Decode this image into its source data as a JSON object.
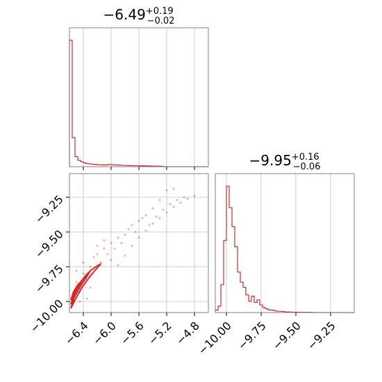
{
  "chart_data": [
    {
      "type": "histogram",
      "panel": "marginal-param-1",
      "title": "−6.49",
      "title_sup": "+0.19",
      "title_sub": "−0.02",
      "x_range": [
        -6.6,
        -4.6
      ],
      "x_ticks": [
        -6.4,
        -6.0,
        -5.6,
        -5.2,
        -4.8
      ],
      "grid": true,
      "color": "#d62728",
      "bin_edges_start": -6.6,
      "bin_width": 0.04,
      "counts": [
        100,
        23,
        8,
        5,
        4,
        3,
        2.5,
        2.2,
        2,
        1.8,
        1.5,
        1.5,
        1.3,
        1.5,
        1.8,
        1.6,
        1.3,
        1.3,
        1.2,
        1,
        1,
        0.9,
        0.8,
        0.8,
        0.8,
        0.7,
        0.6,
        0.7,
        0.6,
        0.5,
        0.5,
        0.4,
        0.4,
        0.3,
        0,
        0,
        0,
        0,
        0,
        0,
        0,
        0,
        0,
        0,
        0,
        0,
        0,
        0,
        0,
        0
      ]
    },
    {
      "type": "histogram",
      "panel": "marginal-param-2",
      "title": "−9.95",
      "title_sup": "+0.16",
      "title_sub": "−0.06",
      "x_range": [
        -10.08,
        -9.08
      ],
      "x_ticks": [
        -10.0,
        -9.75,
        -9.5,
        -9.25
      ],
      "x_tick_labels": [
        "−10.00",
        "−9.75",
        "−9.50",
        "−9.25"
      ],
      "grid": true,
      "color": "#d62728",
      "bin_edges_start": -10.08,
      "bin_width": 0.02,
      "counts": [
        2,
        5,
        22,
        57,
        100,
        83,
        68,
        52,
        32,
        24,
        20,
        14,
        9,
        13,
        8,
        10,
        6,
        4,
        3,
        2,
        2,
        1.5,
        1,
        1,
        0.8,
        0.5,
        0.5,
        0.3,
        0.3,
        0.3,
        0.2,
        0.2,
        0.2,
        0.2,
        0.2,
        0,
        0,
        0,
        0,
        0,
        0,
        0,
        0,
        0,
        0,
        0,
        0,
        0,
        0,
        0
      ]
    },
    {
      "type": "scatter",
      "panel": "joint-param-1-param-2",
      "x_range": [
        -6.6,
        -4.6
      ],
      "y_range": [
        -10.08,
        -9.08
      ],
      "x_ticks": [
        -6.4,
        -6.0,
        -5.6,
        -5.2,
        -4.8
      ],
      "x_tick_labels": [
        "−6.4",
        "−6.0",
        "−5.6",
        "−5.2",
        "−4.8"
      ],
      "y_ticks": [
        -9.25,
        -9.5,
        -9.75,
        -10.0
      ],
      "y_tick_labels": [
        "−9.25",
        "−9.50",
        "−9.75",
        "−10.00"
      ],
      "grid": true,
      "color": "#d62728",
      "points": [
        {
          "x": -5.9,
          "y": -9.74
        },
        {
          "x": -5.8,
          "y": -9.67
        },
        {
          "x": -5.7,
          "y": -9.6
        },
        {
          "x": -5.6,
          "y": -9.54
        },
        {
          "x": -5.5,
          "y": -9.49
        },
        {
          "x": -5.4,
          "y": -9.44
        },
        {
          "x": -5.3,
          "y": -9.4
        },
        {
          "x": -5.2,
          "y": -9.36
        },
        {
          "x": -5.1,
          "y": -9.32
        },
        {
          "x": -5.0,
          "y": -9.29
        },
        {
          "x": -4.9,
          "y": -9.26
        },
        {
          "x": -4.8,
          "y": -9.24
        },
        {
          "x": -6.0,
          "y": -9.58
        },
        {
          "x": -5.9,
          "y": -9.54
        },
        {
          "x": -5.75,
          "y": -9.48
        },
        {
          "x": -5.6,
          "y": -9.42
        },
        {
          "x": -5.5,
          "y": -9.38
        },
        {
          "x": -5.4,
          "y": -9.33
        },
        {
          "x": -5.3,
          "y": -9.27
        },
        {
          "x": -5.2,
          "y": -9.2
        },
        {
          "x": -5.1,
          "y": -9.19
        },
        {
          "x": -6.1,
          "y": -9.62
        },
        {
          "x": -6.2,
          "y": -9.66
        },
        {
          "x": -6.3,
          "y": -9.75
        },
        {
          "x": -6.4,
          "y": -9.8
        },
        {
          "x": -6.5,
          "y": -9.86
        },
        {
          "x": -6.55,
          "y": -9.94
        },
        {
          "x": -6.45,
          "y": -10.0
        },
        {
          "x": -6.35,
          "y": -9.98
        },
        {
          "x": -6.3,
          "y": -9.9
        },
        {
          "x": -6.0,
          "y": -9.7
        },
        {
          "x": -5.95,
          "y": -9.62
        },
        {
          "x": -6.05,
          "y": -9.66
        },
        {
          "x": -5.85,
          "y": -9.58
        },
        {
          "x": -6.15,
          "y": -9.72
        },
        {
          "x": -6.25,
          "y": -9.68
        },
        {
          "x": -5.65,
          "y": -9.5
        },
        {
          "x": -5.45,
          "y": -9.45
        },
        {
          "x": -5.35,
          "y": -9.39
        },
        {
          "x": -5.25,
          "y": -9.34
        },
        {
          "x": -5.15,
          "y": -9.3
        },
        {
          "x": -5.05,
          "y": -9.27
        },
        {
          "x": -4.95,
          "y": -9.25
        },
        {
          "x": -5.7,
          "y": -9.45
        },
        {
          "x": -5.55,
          "y": -9.4
        },
        {
          "x": -6.4,
          "y": -9.72
        },
        {
          "x": -6.5,
          "y": -9.78
        },
        {
          "x": -6.2,
          "y": -9.6
        },
        {
          "x": -6.1,
          "y": -9.56
        },
        {
          "x": -5.8,
          "y": -9.52
        }
      ],
      "contours": [
        {
          "x": [
            -6.58,
            -6.5,
            -6.4,
            -6.3,
            -6.22,
            -6.15,
            -6.22,
            -6.32,
            -6.42,
            -6.52,
            -6.58
          ],
          "y": [
            -10.05,
            -9.92,
            -9.84,
            -9.78,
            -9.75,
            -9.73,
            -9.77,
            -9.83,
            -9.9,
            -9.99,
            -10.05
          ]
        },
        {
          "x": [
            -6.58,
            -6.52,
            -6.44,
            -6.36,
            -6.3,
            -6.36,
            -6.44,
            -6.52,
            -6.58
          ],
          "y": [
            -10.02,
            -9.92,
            -9.86,
            -9.81,
            -9.78,
            -9.83,
            -9.89,
            -9.96,
            -10.02
          ]
        },
        {
          "x": [
            -6.58,
            -6.54,
            -6.48,
            -6.42,
            -6.48,
            -6.54,
            -6.58
          ],
          "y": [
            -9.99,
            -9.93,
            -9.88,
            -9.85,
            -9.9,
            -9.95,
            -9.99
          ]
        }
      ]
    }
  ]
}
